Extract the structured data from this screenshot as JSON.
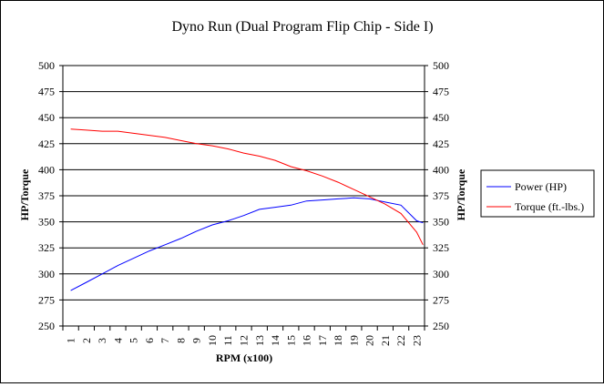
{
  "chart_data": {
    "type": "line",
    "title": "Dyno Run (Dual Program Flip Chip - Side I)",
    "xlabel": "RPM (x100)",
    "ylabel": "HP/Torque",
    "ylabel_right": "HP/Torque",
    "categories": [
      "1",
      "2",
      "3",
      "4",
      "5",
      "6",
      "7",
      "8",
      "9",
      "10",
      "11",
      "12",
      "13",
      "14",
      "15",
      "16",
      "17",
      "18",
      "19",
      "20",
      "21",
      "22",
      "23"
    ],
    "x_last": 23.4,
    "ylim": [
      250,
      500
    ],
    "y_ticks": [
      250,
      275,
      300,
      325,
      350,
      375,
      400,
      425,
      450,
      475,
      500
    ],
    "grid": true,
    "legend_position": "right",
    "series": [
      {
        "name": "Power (HP)",
        "color": "#0000ff",
        "values": [
          284,
          292,
          300,
          308,
          315,
          322,
          328,
          334,
          341,
          347,
          351,
          356,
          362,
          364,
          366,
          370,
          371,
          372,
          373,
          372,
          369,
          366,
          351
        ],
        "value_last": 349
      },
      {
        "name": "Torque (ft.-lbs.)",
        "color": "#ff0000",
        "values": [
          439,
          438,
          437,
          437,
          435,
          433,
          431,
          428,
          425,
          423,
          420,
          416,
          413,
          409,
          403,
          399,
          394,
          388,
          381,
          374,
          367,
          358,
          340
        ],
        "value_last": 328
      }
    ]
  }
}
